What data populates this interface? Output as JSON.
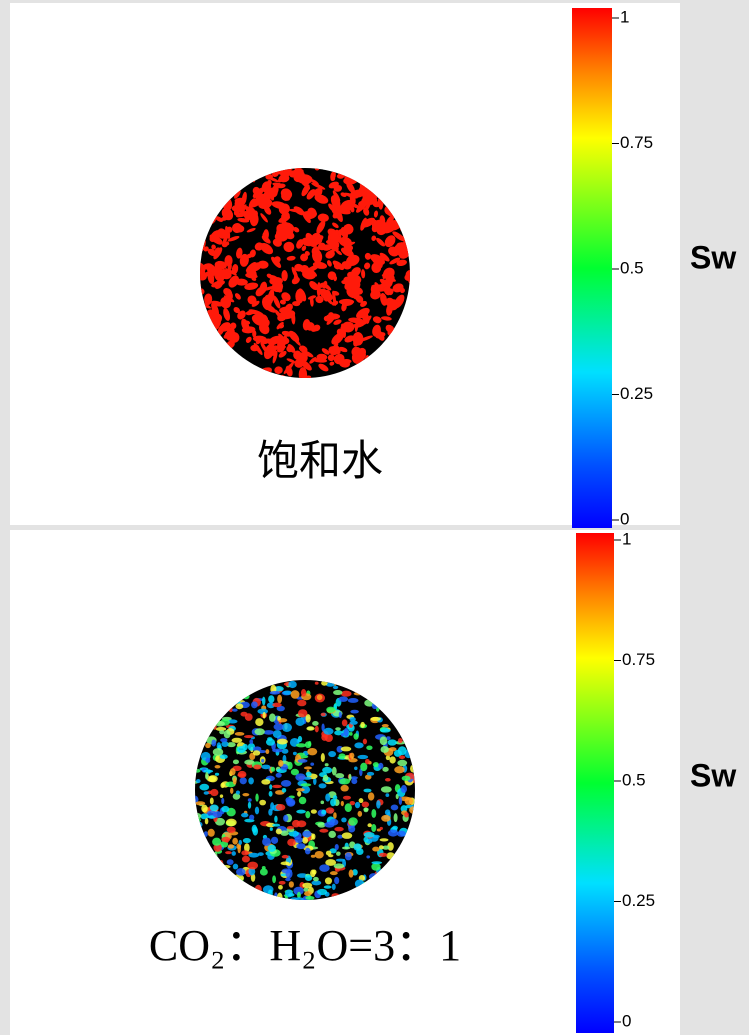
{
  "panels": [
    {
      "label": "饱和水",
      "colorbar": {
        "lim": [
          0,
          1
        ],
        "ticks": [
          1,
          0.75,
          0.5,
          0.25,
          0
        ],
        "label": "Sw"
      }
    },
    {
      "label": "CO₂：H₂O=3：1",
      "colorbar": {
        "lim": [
          0,
          1
        ],
        "ticks": [
          1,
          0.75,
          0.5,
          0.25,
          0
        ],
        "label": "Sw"
      }
    }
  ]
}
